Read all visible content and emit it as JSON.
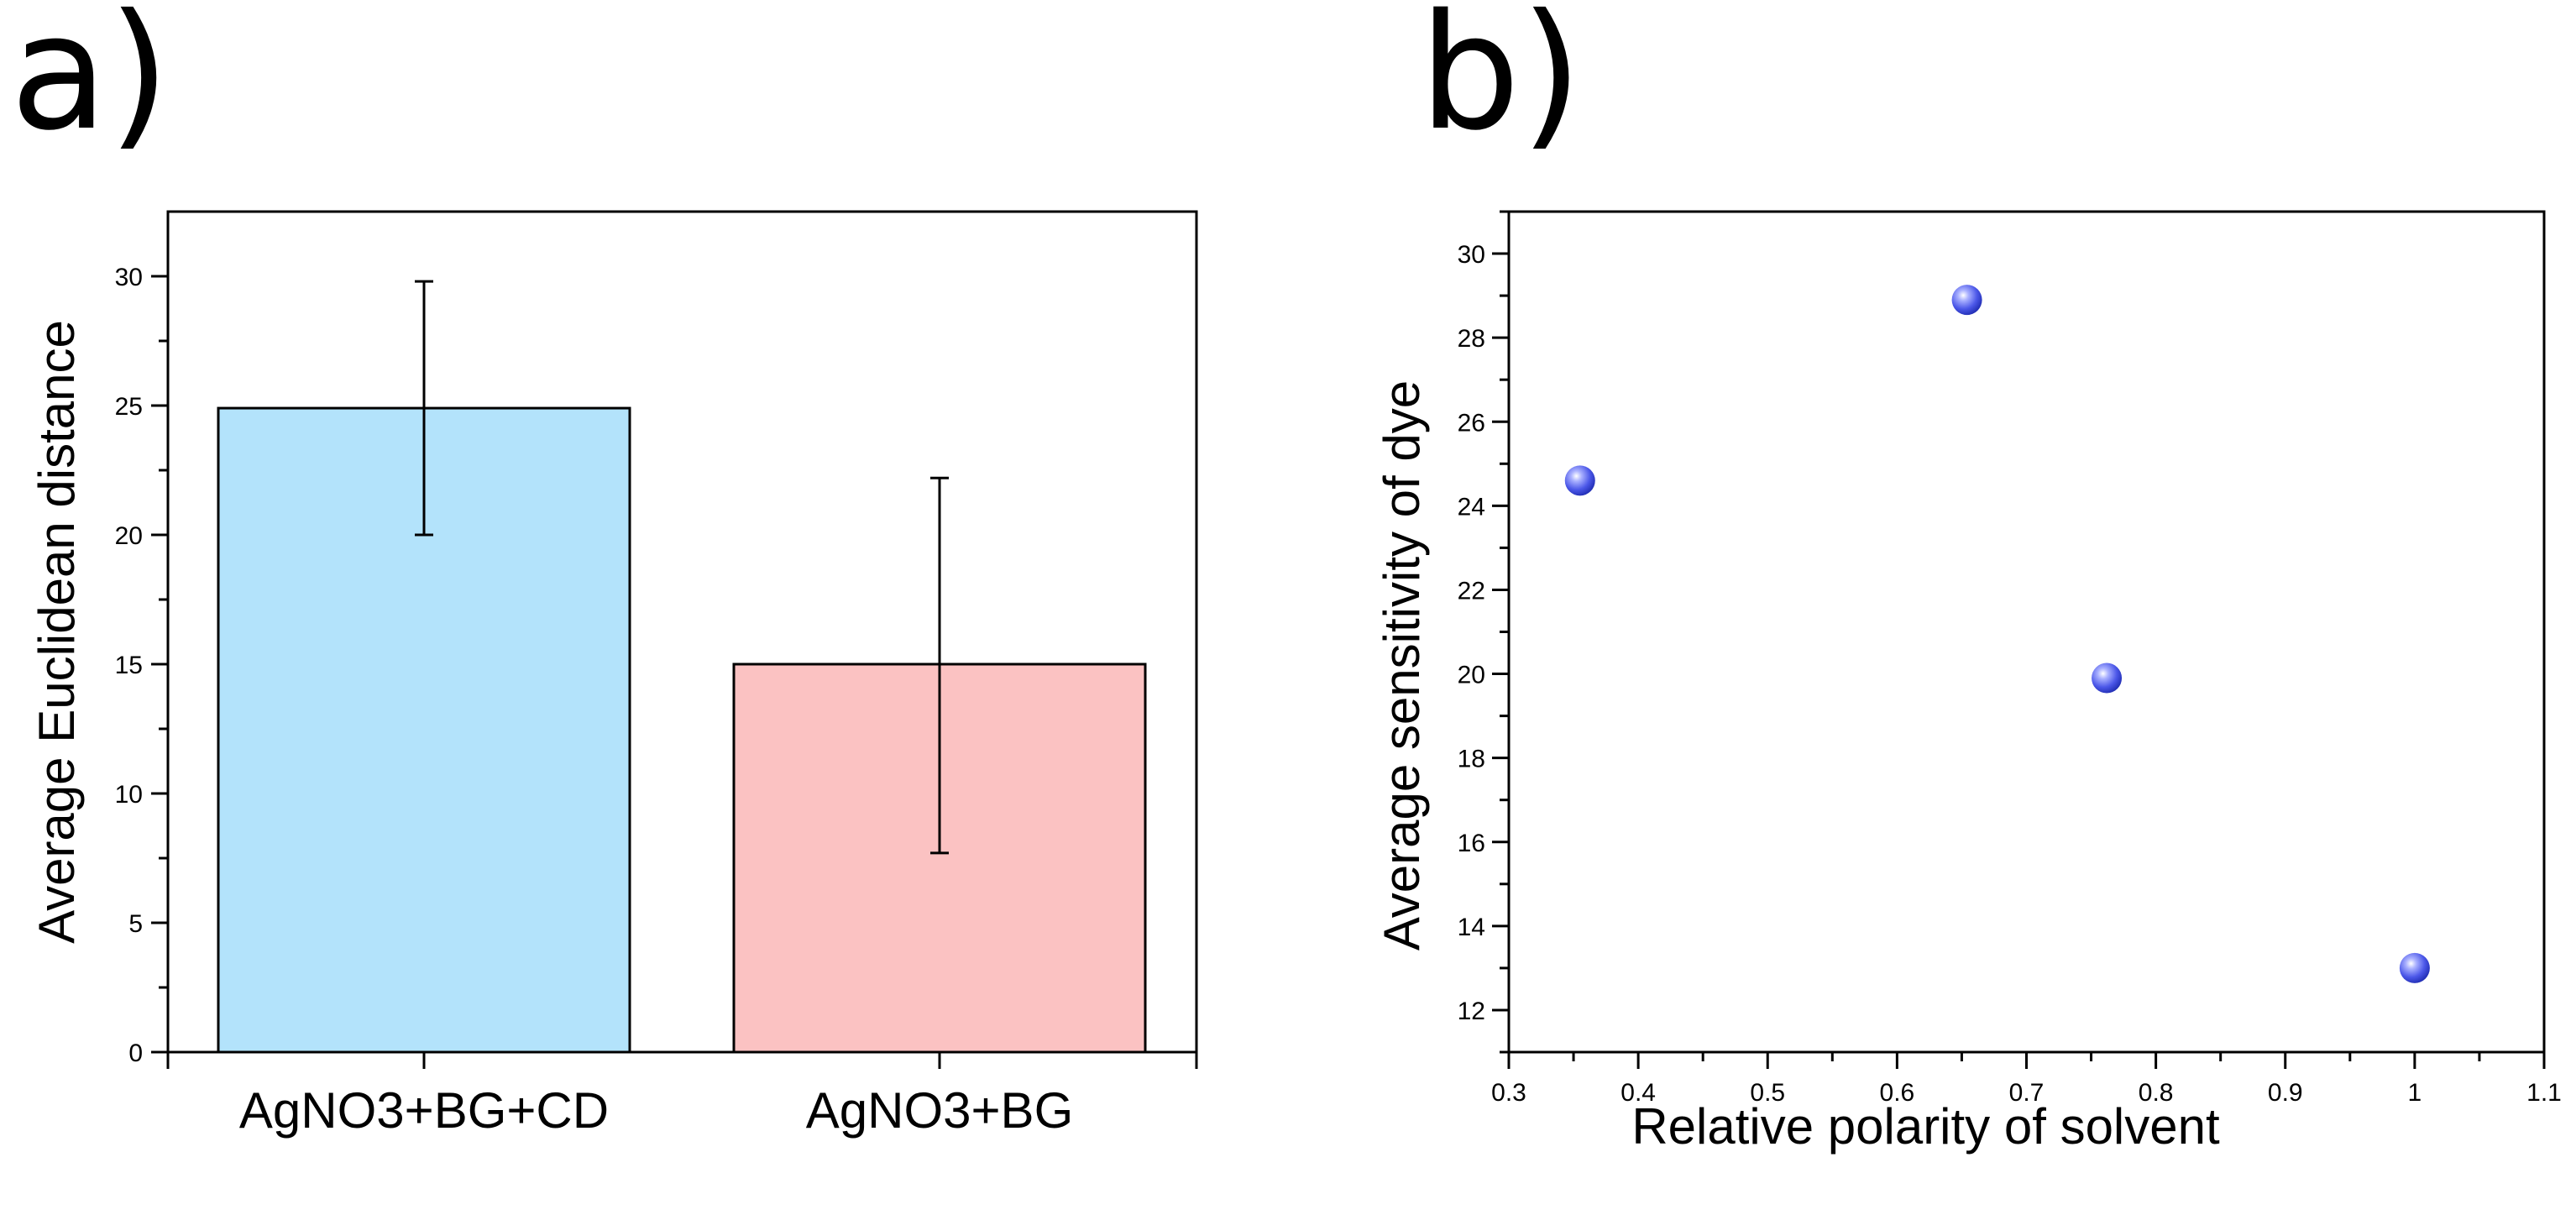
{
  "panels": {
    "a": "a)",
    "b": "b)"
  },
  "chart_data": [
    {
      "type": "bar",
      "panel": "a)",
      "title": "",
      "categories": [
        "AgNO3+BG+CD",
        "AgNO3+BG"
      ],
      "values": [
        24.9,
        15.0
      ],
      "errors_low": [
        20.0,
        7.7
      ],
      "errors_high": [
        29.8,
        22.2
      ],
      "bar_colors": [
        "#b3e3fb",
        "#fbc2c2"
      ],
      "xlabel": "",
      "ylabel": "Average Euclidean distance",
      "ylim": [
        0,
        32.5
      ],
      "yticks": [
        0,
        5,
        10,
        15,
        20,
        25,
        30
      ],
      "grid": false
    },
    {
      "type": "scatter",
      "panel": "b)",
      "title": "",
      "x": [
        0.355,
        0.654,
        0.762,
        1.0
      ],
      "y": [
        24.6,
        28.9,
        19.9,
        13.0
      ],
      "point_color": "#4b57e8",
      "xlabel": "Relative polarity of solvent",
      "ylabel": "Average sensitivity of dye",
      "xlim": [
        0.3,
        1.1
      ],
      "ylim": [
        11,
        31
      ],
      "xticks": [
        0.3,
        0.4,
        0.5,
        0.6,
        0.7,
        0.8,
        0.9,
        1,
        1.1
      ],
      "yticks": [
        12,
        14,
        16,
        18,
        20,
        22,
        24,
        26,
        28,
        30
      ],
      "grid": false
    }
  ]
}
